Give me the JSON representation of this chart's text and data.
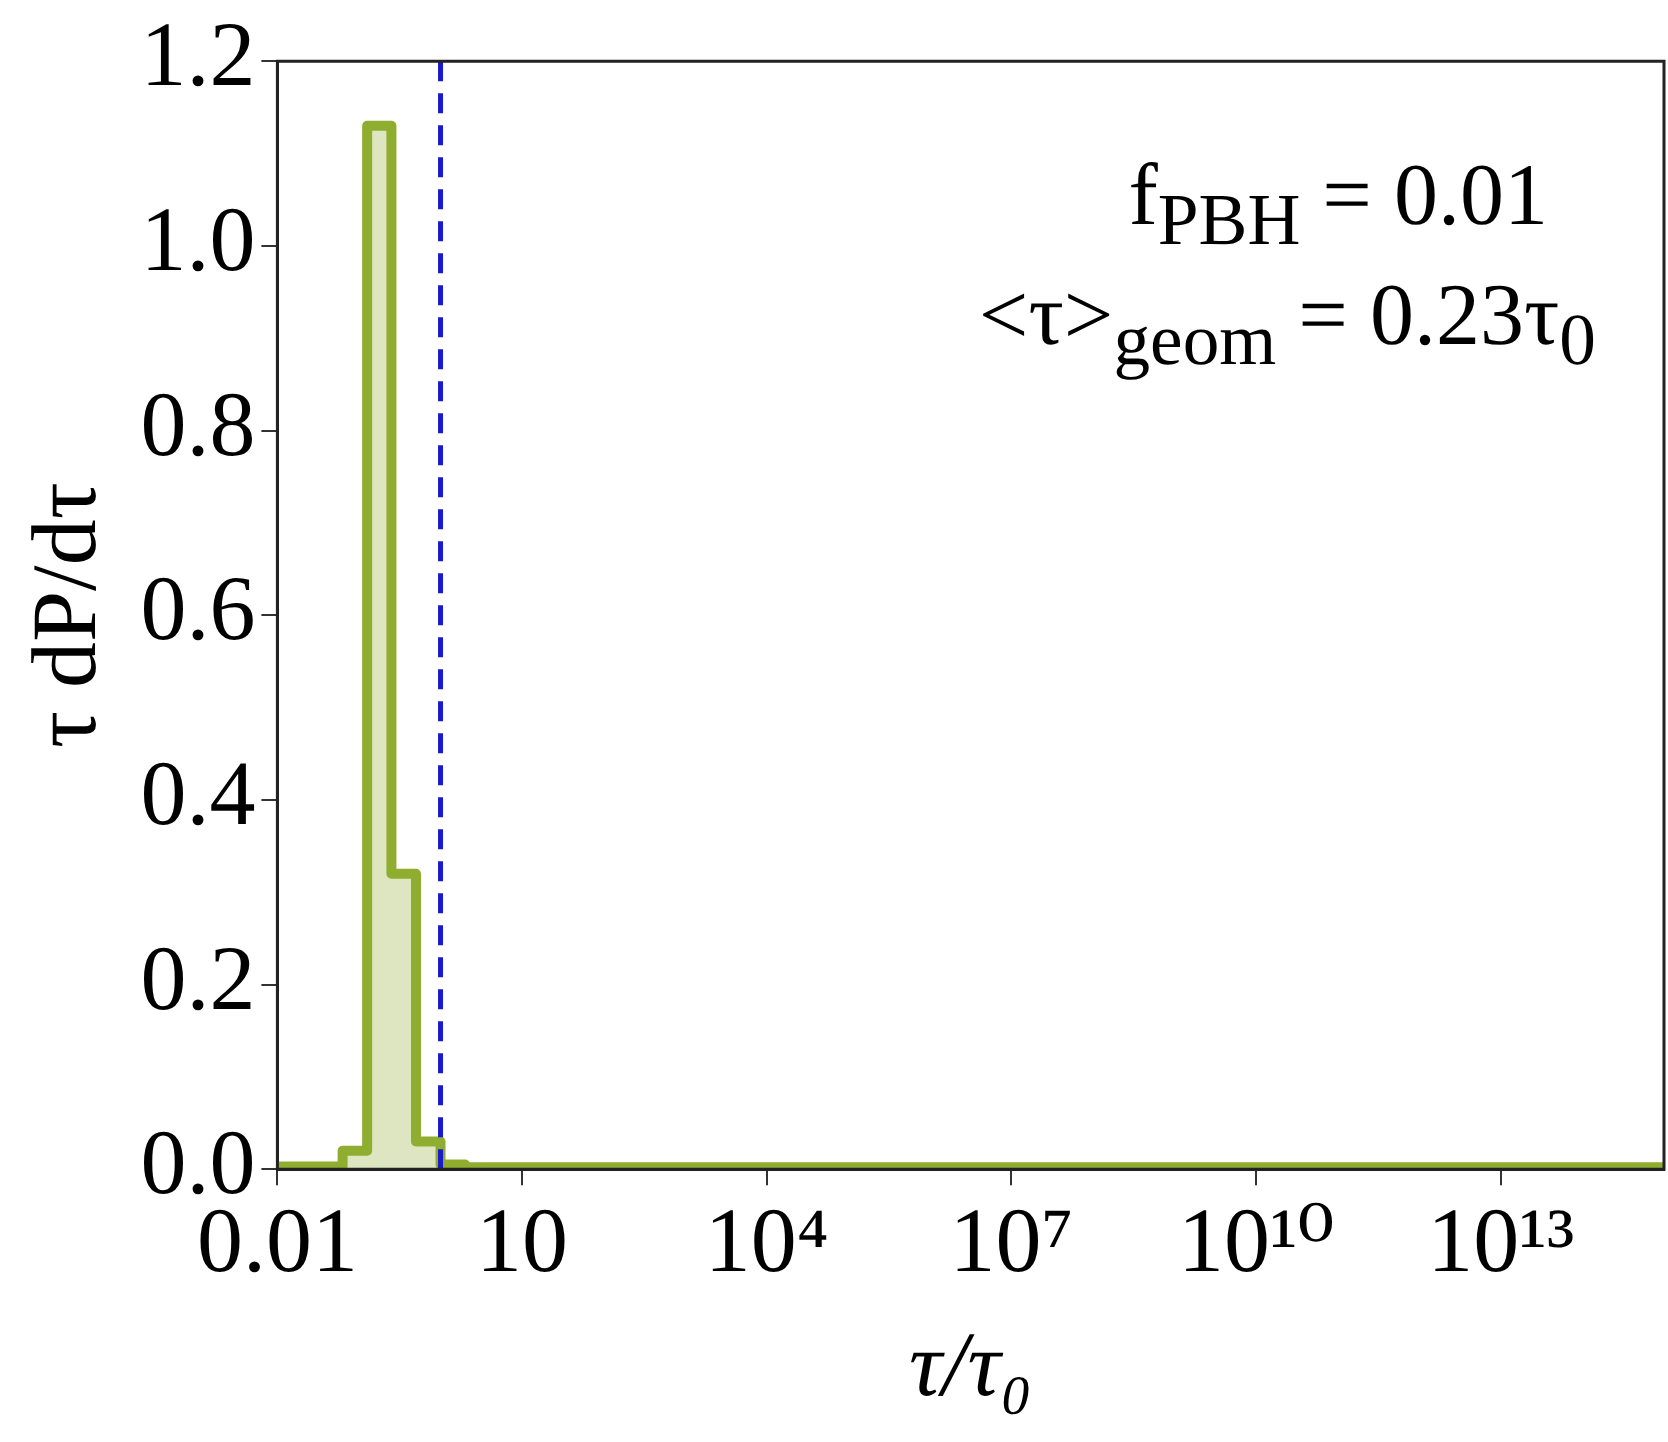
{
  "chart_data": {
    "type": "histogram",
    "xlabel": "τ/τ₀",
    "ylabel": "τ dP/dτ",
    "bins": [
      0.01,
      0.063,
      0.126,
      0.25,
      0.5,
      1,
      2,
      1000000000000000.0
    ],
    "values": [
      0.003,
      0.02,
      1.13,
      0.32,
      0.03,
      0.005,
      0.002
    ],
    "color": "#8fad2e",
    "log": "x",
    "xlim": [
      0.01,
      1000000000000000.0
    ],
    "xticks": [
      0.01,
      10,
      {
        "value": 10000,
        "label": "10⁴"
      },
      {
        "value": 10000000,
        "label": "10⁷"
      },
      {
        "value": 10000000000,
        "label": "10¹⁰"
      },
      {
        "value": 10000000000000,
        "label": "10¹³"
      }
    ],
    "ylim": [
      0,
      1.2
    ],
    "yticks": [
      {
        "value": 0,
        "label": "0.0"
      },
      0.2,
      0.4,
      0.6,
      0.8,
      {
        "value": 1,
        "label": "1.0"
      },
      {
        "value": 1.2,
        "label": "1.2"
      }
    ],
    "grid": false,
    "ref_lines": [
      {
        "axis": "x",
        "value": 1,
        "color": "#1a1acc",
        "line_style": "dashed"
      }
    ],
    "annotations": [
      "f$_{PBH}$ = 0.01",
      "<τ>$_{geom}$ = 0.23τ$_{0}$"
    ]
  }
}
